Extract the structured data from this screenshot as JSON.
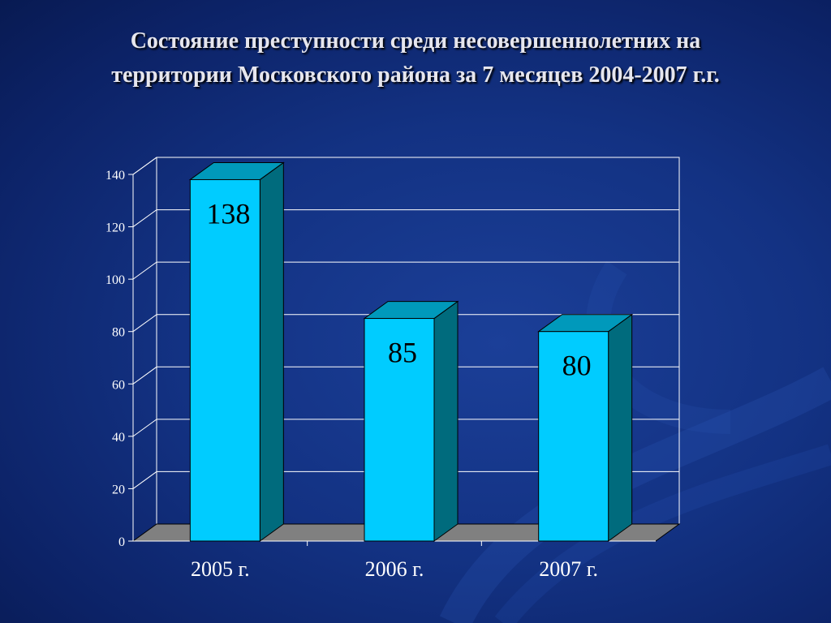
{
  "slide": {
    "title_line1": "Состояние преступности среди несовершеннолетних на",
    "title_line2": "территории Московского района за  7 месяцев 2004-2007 г.г."
  },
  "colors": {
    "bar_front": "#00ccff",
    "bar_side": "#006b7d",
    "bar_top": "#0099bb",
    "floor": "#808080",
    "gridline": "#ffffff",
    "axis_text": "#ffffff",
    "label_text": "#000000"
  },
  "chart_data": {
    "type": "bar",
    "categories": [
      "2005 г.",
      "2006 г.",
      "2007 г."
    ],
    "values": [
      138,
      85,
      80
    ],
    "data_labels": [
      "138",
      "85",
      "80"
    ],
    "ylim": [
      0,
      140
    ],
    "yticks": [
      0,
      20,
      40,
      60,
      80,
      100,
      120,
      140
    ],
    "ytick_labels": [
      "0",
      "20",
      "40",
      "60",
      "80",
      "100",
      "120",
      "140"
    ],
    "grid": true,
    "three_d": true,
    "title": "",
    "xlabel": "",
    "ylabel": ""
  }
}
